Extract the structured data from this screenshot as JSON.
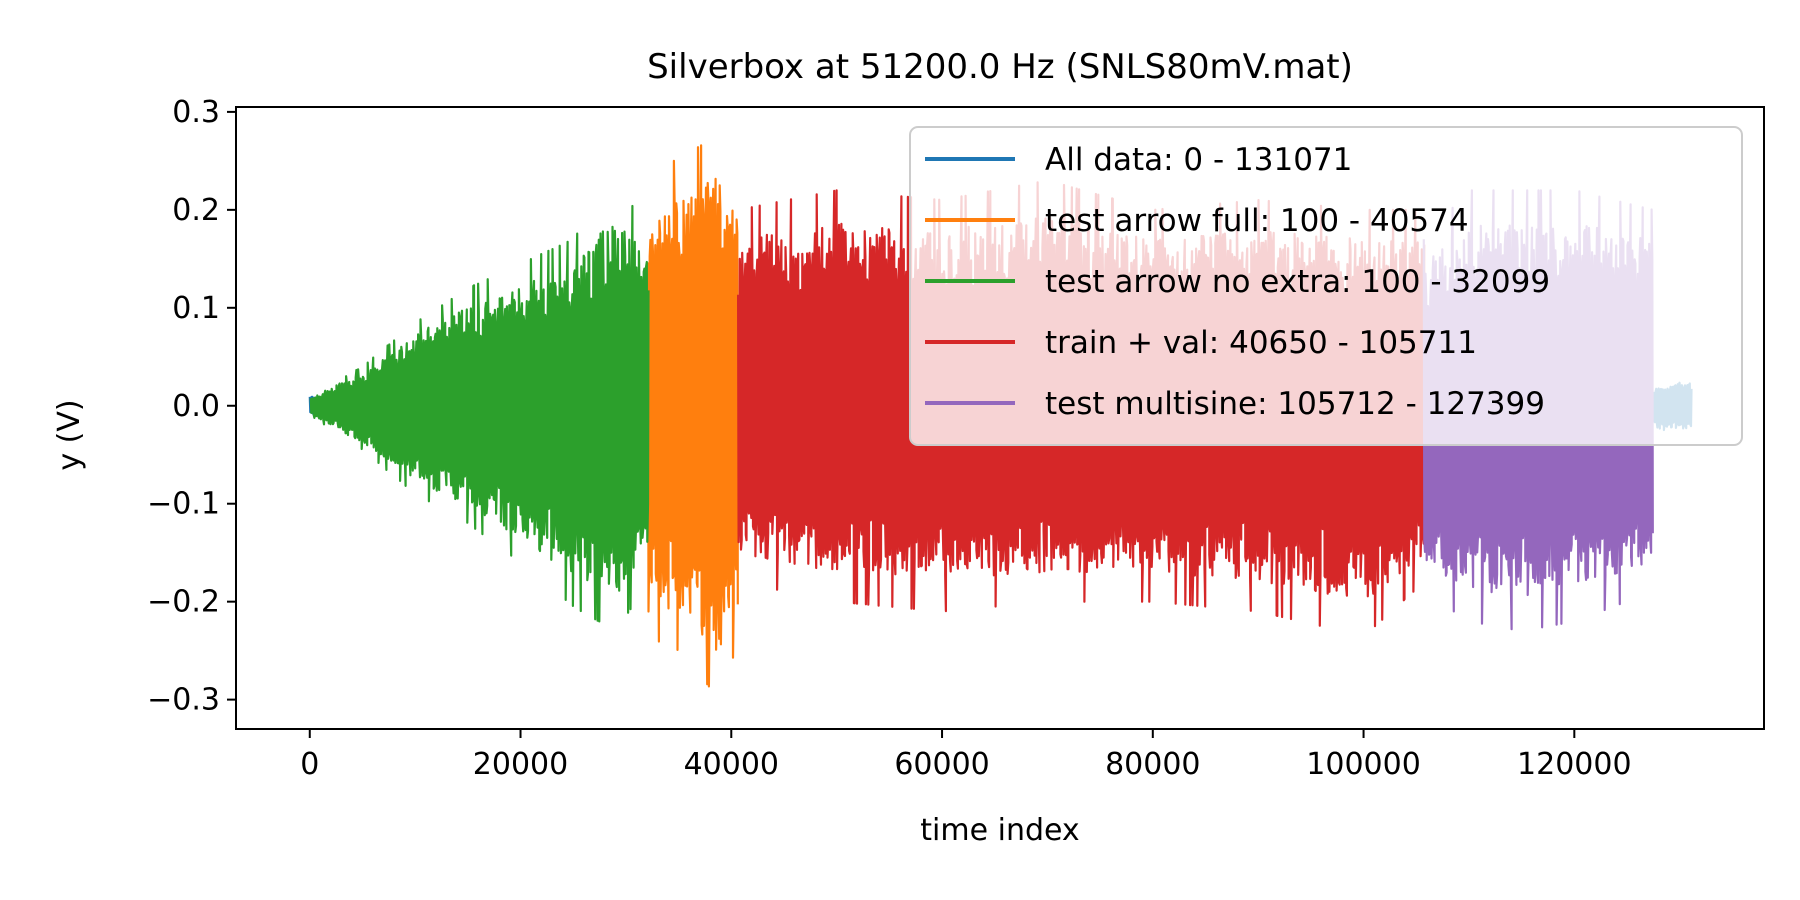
{
  "chart_data": {
    "type": "line",
    "title": "Silverbox at 51200.0 Hz (SNLS80mV.mat)",
    "xlabel": "time index",
    "ylabel": "y (V)",
    "xlim": [
      -7000,
      138000
    ],
    "ylim": [
      -0.33,
      0.305
    ],
    "xticks": [
      0,
      20000,
      40000,
      60000,
      80000,
      100000,
      120000
    ],
    "xtick_labels": [
      "0",
      "20000",
      "40000",
      "60000",
      "80000",
      "100000",
      "120000"
    ],
    "yticks": [
      0.3,
      0.2,
      0.1,
      0.0,
      -0.1,
      -0.2,
      -0.3
    ],
    "ytick_labels": [
      "0.3",
      "0.2",
      "0.1",
      "0.0",
      "−0.1",
      "−0.2",
      "−0.3"
    ],
    "grid": false,
    "legend_position": "top-right",
    "series": [
      {
        "name": "All data: 0 - 131071",
        "color": "#1f77b4",
        "x_range": [
          0,
          131071
        ],
        "envelope": {
          "x": [
            0,
            600,
            127400,
            128500,
            130000,
            131071
          ],
          "y_max": [
            0.015,
            0.01,
            0.02,
            0.025,
            0.028,
            0.028
          ],
          "y_min": [
            -0.01,
            -0.01,
            -0.02,
            -0.025,
            -0.028,
            -0.028
          ]
        }
      },
      {
        "name": "test arrow full: 100 - 40574",
        "color": "#ff7f0e",
        "x_range": [
          100,
          40574
        ],
        "envelope": {
          "x": [
            32100,
            33000,
            35000,
            37000,
            38500,
            39500,
            40574
          ],
          "y_max": [
            0.21,
            0.235,
            0.255,
            0.265,
            0.275,
            0.26,
            0.245
          ],
          "y_min": [
            -0.21,
            -0.24,
            -0.25,
            -0.27,
            -0.3,
            -0.28,
            -0.24
          ]
        }
      },
      {
        "name": "test arrow no extra: 100 - 32099",
        "color": "#2ca02c",
        "x_range": [
          100,
          32099
        ],
        "envelope": {
          "x": [
            100,
            5000,
            10000,
            15000,
            20000,
            25000,
            29000,
            32099
          ],
          "y_max": [
            0.01,
            0.04,
            0.085,
            0.12,
            0.145,
            0.17,
            0.23,
            0.18
          ],
          "y_min": [
            -0.01,
            -0.045,
            -0.09,
            -0.12,
            -0.16,
            -0.205,
            -0.23,
            -0.18
          ]
        }
      },
      {
        "name": "train + val: 40650 - 105711",
        "color": "#d62728",
        "x_range": [
          40650,
          105711
        ],
        "envelope": {
          "x": [
            40650,
            50000,
            60000,
            70000,
            80000,
            90000,
            100000,
            105711
          ],
          "y_max": [
            0.2,
            0.22,
            0.21,
            0.23,
            0.2,
            0.21,
            0.2,
            0.2
          ],
          "y_min": [
            -0.18,
            -0.2,
            -0.21,
            -0.2,
            -0.2,
            -0.21,
            -0.235,
            -0.18
          ]
        }
      },
      {
        "name": "test multisine: 105712 - 127399",
        "color": "#9467bd",
        "x_range": [
          105712,
          127399
        ],
        "envelope": {
          "x": [
            105712,
            110000,
            115000,
            120000,
            127399
          ],
          "y_max": [
            0.17,
            0.22,
            0.22,
            0.22,
            0.2
          ],
          "y_min": [
            -0.19,
            -0.22,
            -0.23,
            -0.22,
            -0.19
          ]
        }
      }
    ]
  }
}
